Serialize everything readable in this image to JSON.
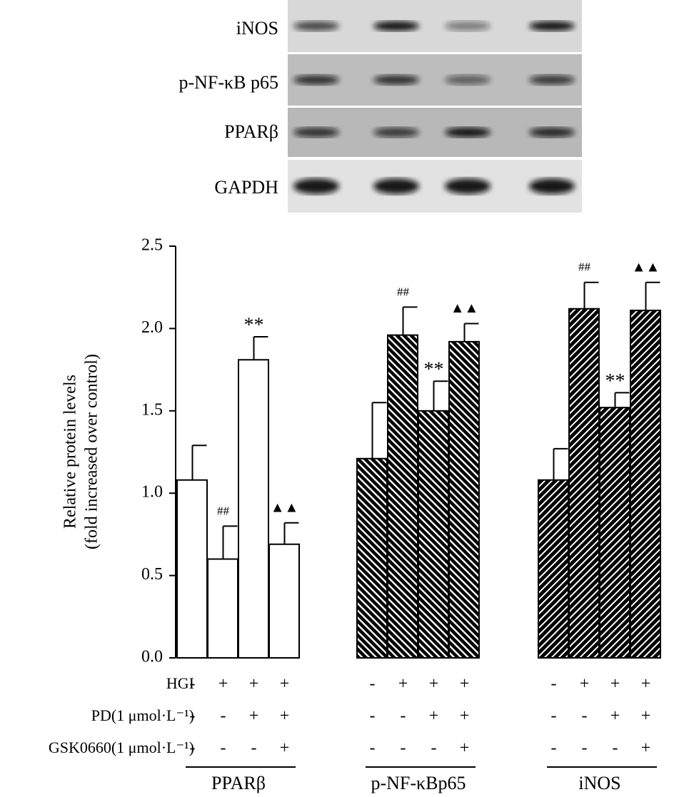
{
  "blot": {
    "labels": [
      "iNOS",
      "p-NF-κB p65",
      "PPARβ",
      "GAPDH"
    ]
  },
  "chart_data": {
    "type": "bar",
    "ylabel": [
      "Relative protein levels",
      "(fold increased over control)"
    ],
    "ylim": [
      0,
      2.5
    ],
    "yticks": [
      {
        "value": 0,
        "label": "0.0"
      },
      0.5,
      {
        "value": 1,
        "label": "1.0"
      },
      1.5,
      {
        "value": 2,
        "label": "2.0"
      },
      2.5
    ],
    "groups": [
      {
        "name": "PPARβ",
        "pattern": "none",
        "values": [
          1.08,
          0.6,
          1.81,
          0.69
        ],
        "errors": [
          0.21,
          0.2,
          0.14,
          0.13
        ],
        "annotations": [
          null,
          "##",
          "**",
          "▲▲"
        ]
      },
      {
        "name": "p-NF-κBp65",
        "pattern": "back",
        "values": [
          1.21,
          1.96,
          1.5,
          1.92
        ],
        "errors": [
          0.34,
          0.17,
          0.18,
          0.11
        ],
        "annotations": [
          null,
          "##",
          "**",
          "▲▲"
        ]
      },
      {
        "name": "iNOS",
        "pattern": "fwd",
        "values": [
          1.08,
          2.12,
          1.52,
          2.11
        ],
        "errors": [
          0.19,
          0.16,
          0.09,
          0.17
        ],
        "annotations": [
          null,
          "##",
          "**",
          "▲▲"
        ]
      }
    ],
    "conditions": [
      {
        "label": "HGI",
        "signs": [
          "-",
          "+",
          "+",
          "+"
        ]
      },
      {
        "label": "PD(1 μmol·L⁻¹)",
        "signs": [
          "-",
          "-",
          "+",
          "+"
        ]
      },
      {
        "label": "GSK0660(1 μmol·L⁻¹)",
        "signs": [
          "-",
          "-",
          "-",
          "+"
        ]
      }
    ]
  }
}
